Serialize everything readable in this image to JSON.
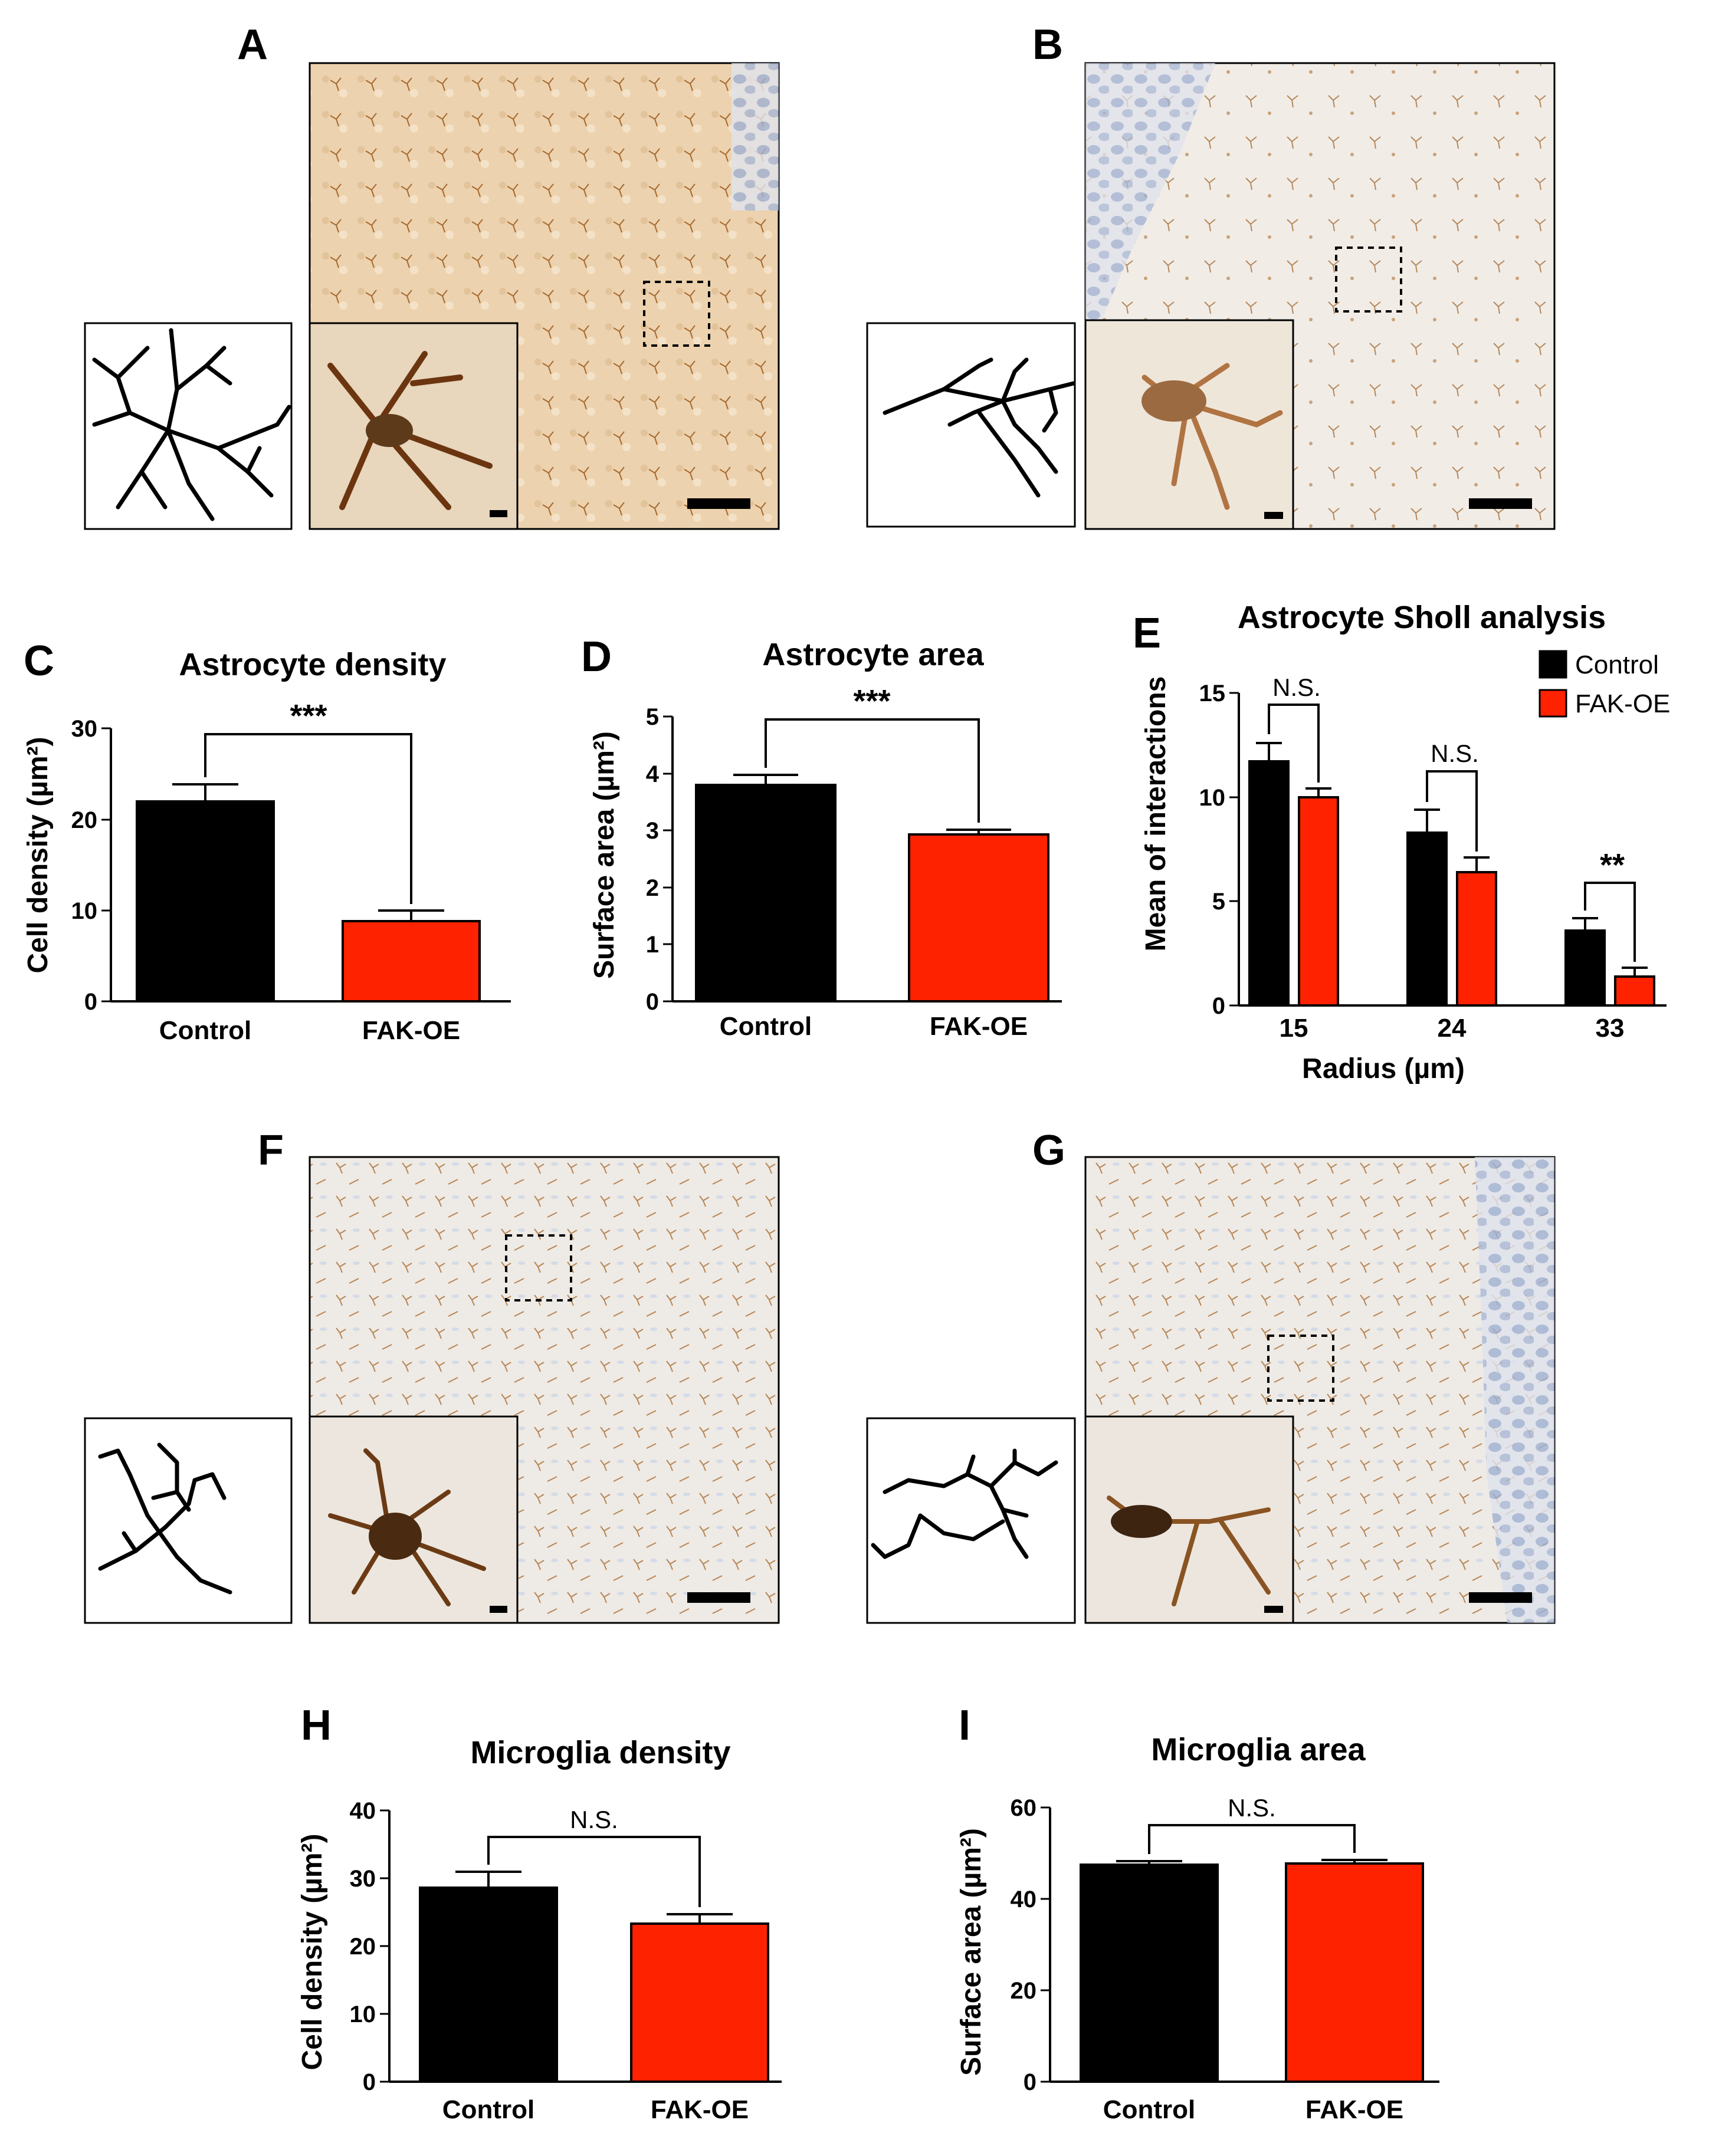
{
  "colors": {
    "control": "#000000",
    "fak_oe": "#ff2200",
    "micro_bg": "#eeeae5",
    "astro_bg_a": "#ecd2ae",
    "astro_bg_b": "#f1ece6",
    "stain": "#8a4a1a",
    "nuclei": "#9fb0d2"
  },
  "images": [
    {
      "letter": "A"
    },
    {
      "letter": "B"
    },
    {
      "letter": "F"
    },
    {
      "letter": "G"
    }
  ],
  "chart_data": [
    {
      "id": "C",
      "type": "bar",
      "letter": "C",
      "title": "Astrocyte density",
      "ylabel": "Cell density (µm²)",
      "categories": [
        "Control",
        "FAK-OE"
      ],
      "values": [
        22,
        8.8
      ],
      "errors": [
        2.0,
        1.2
      ],
      "ylim": [
        0,
        30
      ],
      "yticks": [
        "0",
        "10",
        "20",
        "30"
      ],
      "significance": "***"
    },
    {
      "id": "D",
      "type": "bar",
      "letter": "D",
      "title": "Astrocyte area",
      "ylabel": "Surface area (µm²)",
      "categories": [
        "Control",
        "FAK-OE"
      ],
      "values": [
        3.8,
        2.93
      ],
      "errors": [
        0.18,
        0.08
      ],
      "ylim": [
        0,
        5
      ],
      "yticks": [
        "0",
        "1",
        "2",
        "3",
        "4",
        "5"
      ],
      "significance": "***"
    },
    {
      "id": "E",
      "type": "bar",
      "letter": "E",
      "title": "Astrocyte Sholl analysis",
      "ylabel": "Mean of interactions",
      "xlabel": "Radius (µm)",
      "categories": [
        "15",
        "24",
        "33"
      ],
      "series": [
        {
          "name": "Control",
          "values": [
            11.7,
            8.3,
            3.6
          ],
          "errors": [
            0.9,
            1.1,
            0.6
          ]
        },
        {
          "name": "FAK-OE",
          "values": [
            10.0,
            6.4,
            1.4
          ],
          "errors": [
            0.4,
            0.7,
            0.4
          ]
        }
      ],
      "ylim": [
        0,
        15
      ],
      "yticks": [
        "0",
        "5",
        "10",
        "15"
      ],
      "significance": [
        "N.S.",
        "N.S.",
        "**"
      ],
      "legend": [
        "Control",
        "FAK-OE"
      ]
    },
    {
      "id": "H",
      "type": "bar",
      "letter": "H",
      "title": "Microglia density",
      "ylabel": "Cell density (µm²)",
      "categories": [
        "Control",
        "FAK-OE"
      ],
      "values": [
        28.6,
        23.3
      ],
      "errors": [
        2.3,
        1.4
      ],
      "ylim": [
        0,
        40
      ],
      "yticks": [
        "0",
        "10",
        "20",
        "30",
        "40"
      ],
      "significance": "N.S."
    },
    {
      "id": "I",
      "type": "bar",
      "letter": "I",
      "title": "Microglia area",
      "ylabel": "Surface area (µm²)",
      "categories": [
        "Control",
        "FAK-OE"
      ],
      "values": [
        47.5,
        47.8
      ],
      "errors": [
        0.8,
        0.8
      ],
      "ylim": [
        0,
        60
      ],
      "yticks": [
        "0",
        "20",
        "40",
        "60"
      ],
      "significance": "N.S."
    }
  ]
}
